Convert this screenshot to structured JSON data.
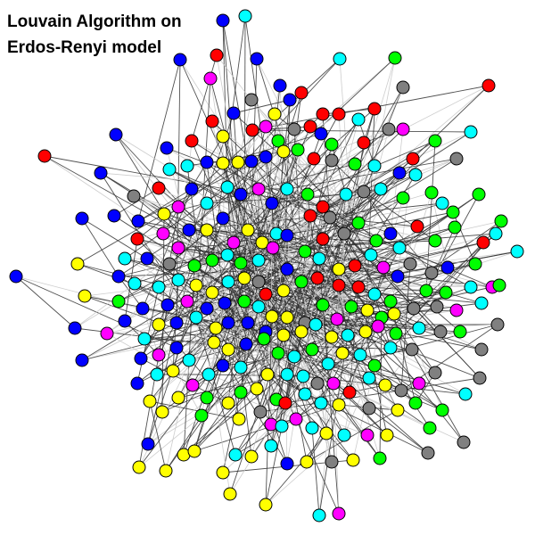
{
  "title": {
    "line1": "Louvain Algorithm on",
    "line2": "Erdos-Renyi model"
  },
  "community_colors": {
    "blue": "#0000ff",
    "cyan": "#00ffff",
    "red": "#ff0000",
    "green": "#00ff00",
    "magenta": "#ff00ff",
    "yellow": "#ffff00",
    "gray": "#808080"
  },
  "edge_colors": {
    "dark": "#333333",
    "light": "#c8c8c8"
  },
  "node_outline": "#000000"
}
